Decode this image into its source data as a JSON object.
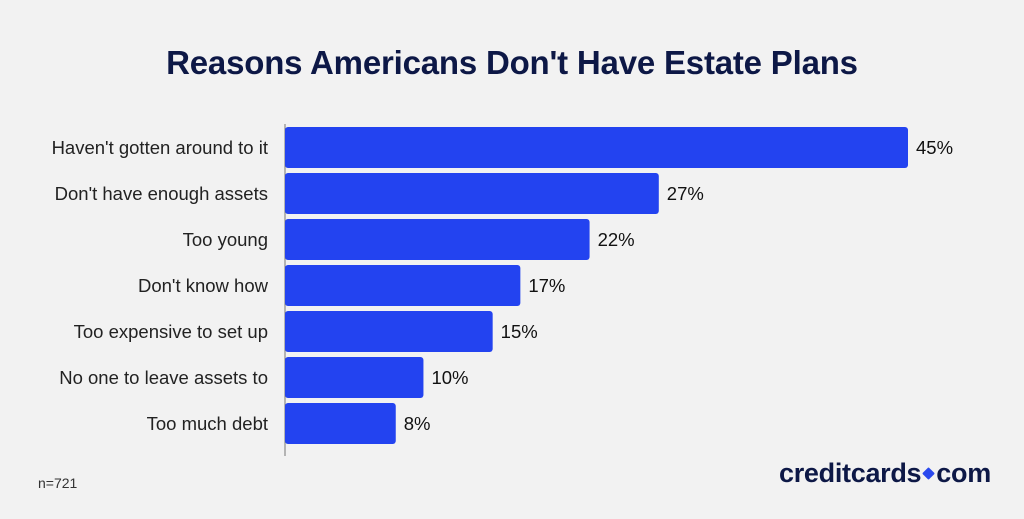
{
  "chart_data": {
    "type": "bar",
    "orientation": "horizontal",
    "title": "Reasons Americans Don't Have Estate Plans",
    "categories": [
      "Haven't gotten around to it",
      "Don't have enough assets",
      "Too young",
      "Don't know how",
      "Too expensive to set up",
      "No one to leave assets to",
      "Too much debt"
    ],
    "values": [
      45,
      27,
      22,
      17,
      15,
      10,
      8
    ],
    "value_labels": [
      "45%",
      "27%",
      "22%",
      "17%",
      "15%",
      "10%",
      "8%"
    ],
    "xlim": [
      0,
      45
    ],
    "bar_color": "#2343f0",
    "grid": false,
    "legend": "none"
  },
  "footnote": "n=721",
  "brand": {
    "left": "creditcards",
    "right": "com",
    "accent": "#2a49ee"
  }
}
